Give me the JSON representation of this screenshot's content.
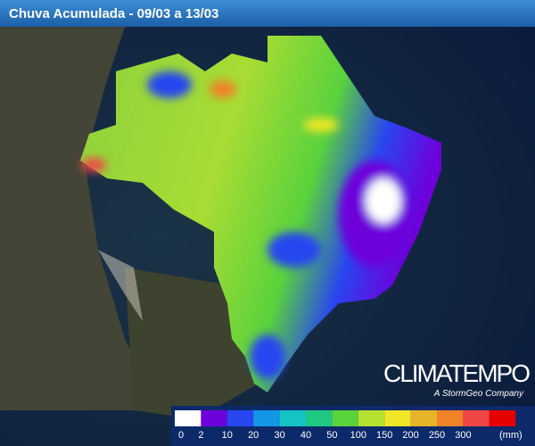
{
  "header": {
    "title": "Chuva Acumulada - 09/03 a 13/03"
  },
  "logo": {
    "name": "CLIMATEMPO",
    "tagline": "A StormGeo Company"
  },
  "legend": {
    "ticks": [
      0,
      2,
      10,
      20,
      30,
      40,
      50,
      100,
      150,
      200,
      250,
      300
    ],
    "unit": "(mm)",
    "colors": [
      "#ffffff",
      "#6e00dc",
      "#2846f0",
      "#1496e6",
      "#14c3c3",
      "#1ec882",
      "#5ad23c",
      "#b4e132",
      "#f0e628",
      "#e6b428",
      "#f08228",
      "#f04646",
      "#e60000"
    ]
  }
}
